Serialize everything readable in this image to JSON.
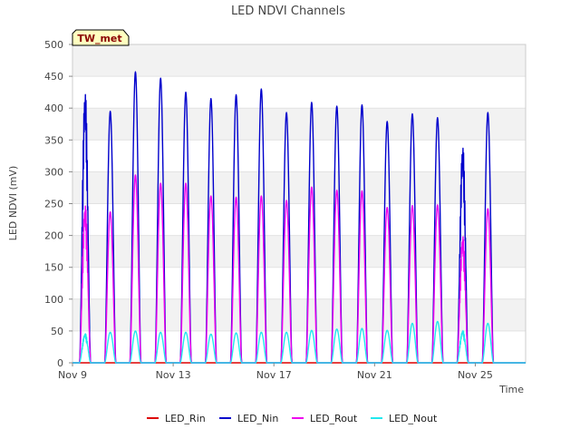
{
  "chart_data": {
    "type": "line",
    "title": "LED NDVI Channels",
    "xlabel": "Time",
    "ylabel": "LED NDVI (mV)",
    "badge": "TW_met",
    "ylim": [
      0,
      500
    ],
    "yticks": [
      0,
      50,
      100,
      150,
      200,
      250,
      300,
      350,
      400,
      450,
      500
    ],
    "xlim": [
      "2023-11-09",
      "2023-11-27"
    ],
    "xticks": [
      {
        "date": "2023-11-09",
        "label": "Nov 9"
      },
      {
        "date": "2023-11-13",
        "label": "Nov 13"
      },
      {
        "date": "2023-11-17",
        "label": "Nov 17"
      },
      {
        "date": "2023-11-21",
        "label": "Nov 21"
      },
      {
        "date": "2023-11-25",
        "label": "Nov 25"
      }
    ],
    "grid": true,
    "legend_position": "bottom",
    "day_peak_time": "12:00",
    "days": [
      "2023-11-09",
      "2023-11-10",
      "2023-11-11",
      "2023-11-12",
      "2023-11-13",
      "2023-11-14",
      "2023-11-15",
      "2023-11-16",
      "2023-11-17",
      "2023-11-18",
      "2023-11-19",
      "2023-11-20",
      "2023-11-21",
      "2023-11-22",
      "2023-11-23",
      "2023-11-24",
      "2023-11-25",
      "2023-11-26"
    ],
    "series": [
      {
        "name": "LED_Rin",
        "color": "#dd0000",
        "daily_peaks": [
          0,
          0,
          0,
          0,
          0,
          0,
          0,
          0,
          0,
          0,
          0,
          0,
          0,
          0,
          0,
          0,
          0,
          0
        ]
      },
      {
        "name": "LED_Nin",
        "color": "#0000cc",
        "daily_peaks": [
          440,
          395,
          457,
          447,
          425,
          415,
          421,
          430,
          393,
          409,
          403,
          405,
          379,
          391,
          385,
          352,
          393,
          0
        ]
      },
      {
        "name": "LED_Rout",
        "color": "#ee00ee",
        "daily_peaks": [
          255,
          237,
          295,
          282,
          282,
          262,
          260,
          262,
          255,
          276,
          271,
          270,
          244,
          247,
          248,
          205,
          242,
          0
        ]
      },
      {
        "name": "LED_Nout",
        "color": "#22e8ee",
        "daily_peaks": [
          47,
          48,
          50,
          48,
          48,
          45,
          47,
          48,
          48,
          51,
          53,
          54,
          51,
          62,
          65,
          52,
          62,
          0
        ]
      }
    ]
  }
}
